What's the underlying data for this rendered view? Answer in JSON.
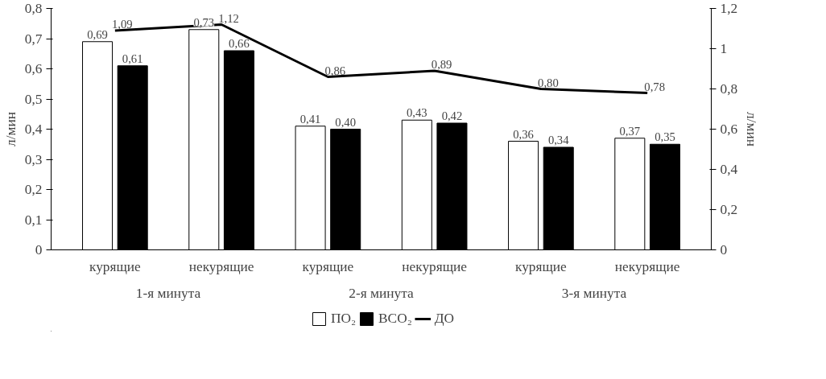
{
  "chart_data": {
    "type": "bar",
    "categories": [
      "курящие",
      "некурящие",
      "курящие",
      "некурящие",
      "курящие",
      "некурящие"
    ],
    "annotations": [
      "1-я минута",
      "2-я минута",
      "3-я минута"
    ],
    "ylabel": "л/мин",
    "y2label": "л/мин",
    "ylim": [
      0,
      0.8
    ],
    "yticks": [
      {
        "value": 0,
        "label": "0"
      },
      {
        "value": 0.1,
        "label": "0,1"
      },
      {
        "value": 0.2,
        "label": "0,2"
      },
      {
        "value": 0.3,
        "label": "0,3"
      },
      {
        "value": 0.4,
        "label": "0,4"
      },
      {
        "value": 0.5,
        "label": "0,5"
      },
      {
        "value": 0.6,
        "label": "0,6"
      },
      {
        "value": 0.7,
        "label": "0,7"
      },
      {
        "value": 0.8,
        "label": "0,8"
      }
    ],
    "y2lim": [
      0,
      1.2
    ],
    "y2ticks": [
      {
        "value": 0,
        "label": "0"
      },
      {
        "value": 0.2,
        "label": "0,2"
      },
      {
        "value": 0.4,
        "label": "0,4"
      },
      {
        "value": 0.6,
        "label": "0,6"
      },
      {
        "value": 0.8,
        "label": "0,8"
      },
      {
        "value": 1,
        "label": "1"
      },
      {
        "value": 1.2,
        "label": "1,2"
      }
    ],
    "series": [
      {
        "name": "ПО₂",
        "color": "#ffffff",
        "values": [
          0.69,
          0.73,
          0.41,
          0.43,
          0.36,
          0.37
        ],
        "value_labels": [
          "0,69",
          "0,73",
          "0,41",
          "0,43",
          "0,36",
          "0,37"
        ]
      },
      {
        "name": "ВСО₂",
        "color": "#000000",
        "values": [
          0.61,
          0.66,
          0.4,
          0.42,
          0.34,
          0.35
        ],
        "value_labels": [
          "0,61",
          "0,66",
          "0,40",
          "0,42",
          "0,34",
          "0,35"
        ]
      },
      {
        "name": "ДО",
        "type": "line",
        "axis": "y2",
        "color": "#000000",
        "values": [
          1.09,
          1.12,
          0.86,
          0.89,
          0.8,
          0.78
        ],
        "value_labels": [
          "1,09",
          "1,12",
          "0,86",
          "0,89",
          "0,80",
          "0,78"
        ]
      }
    ],
    "legend": "bottom",
    "grid": false,
    "marker": "none",
    "line_style": "solid"
  }
}
